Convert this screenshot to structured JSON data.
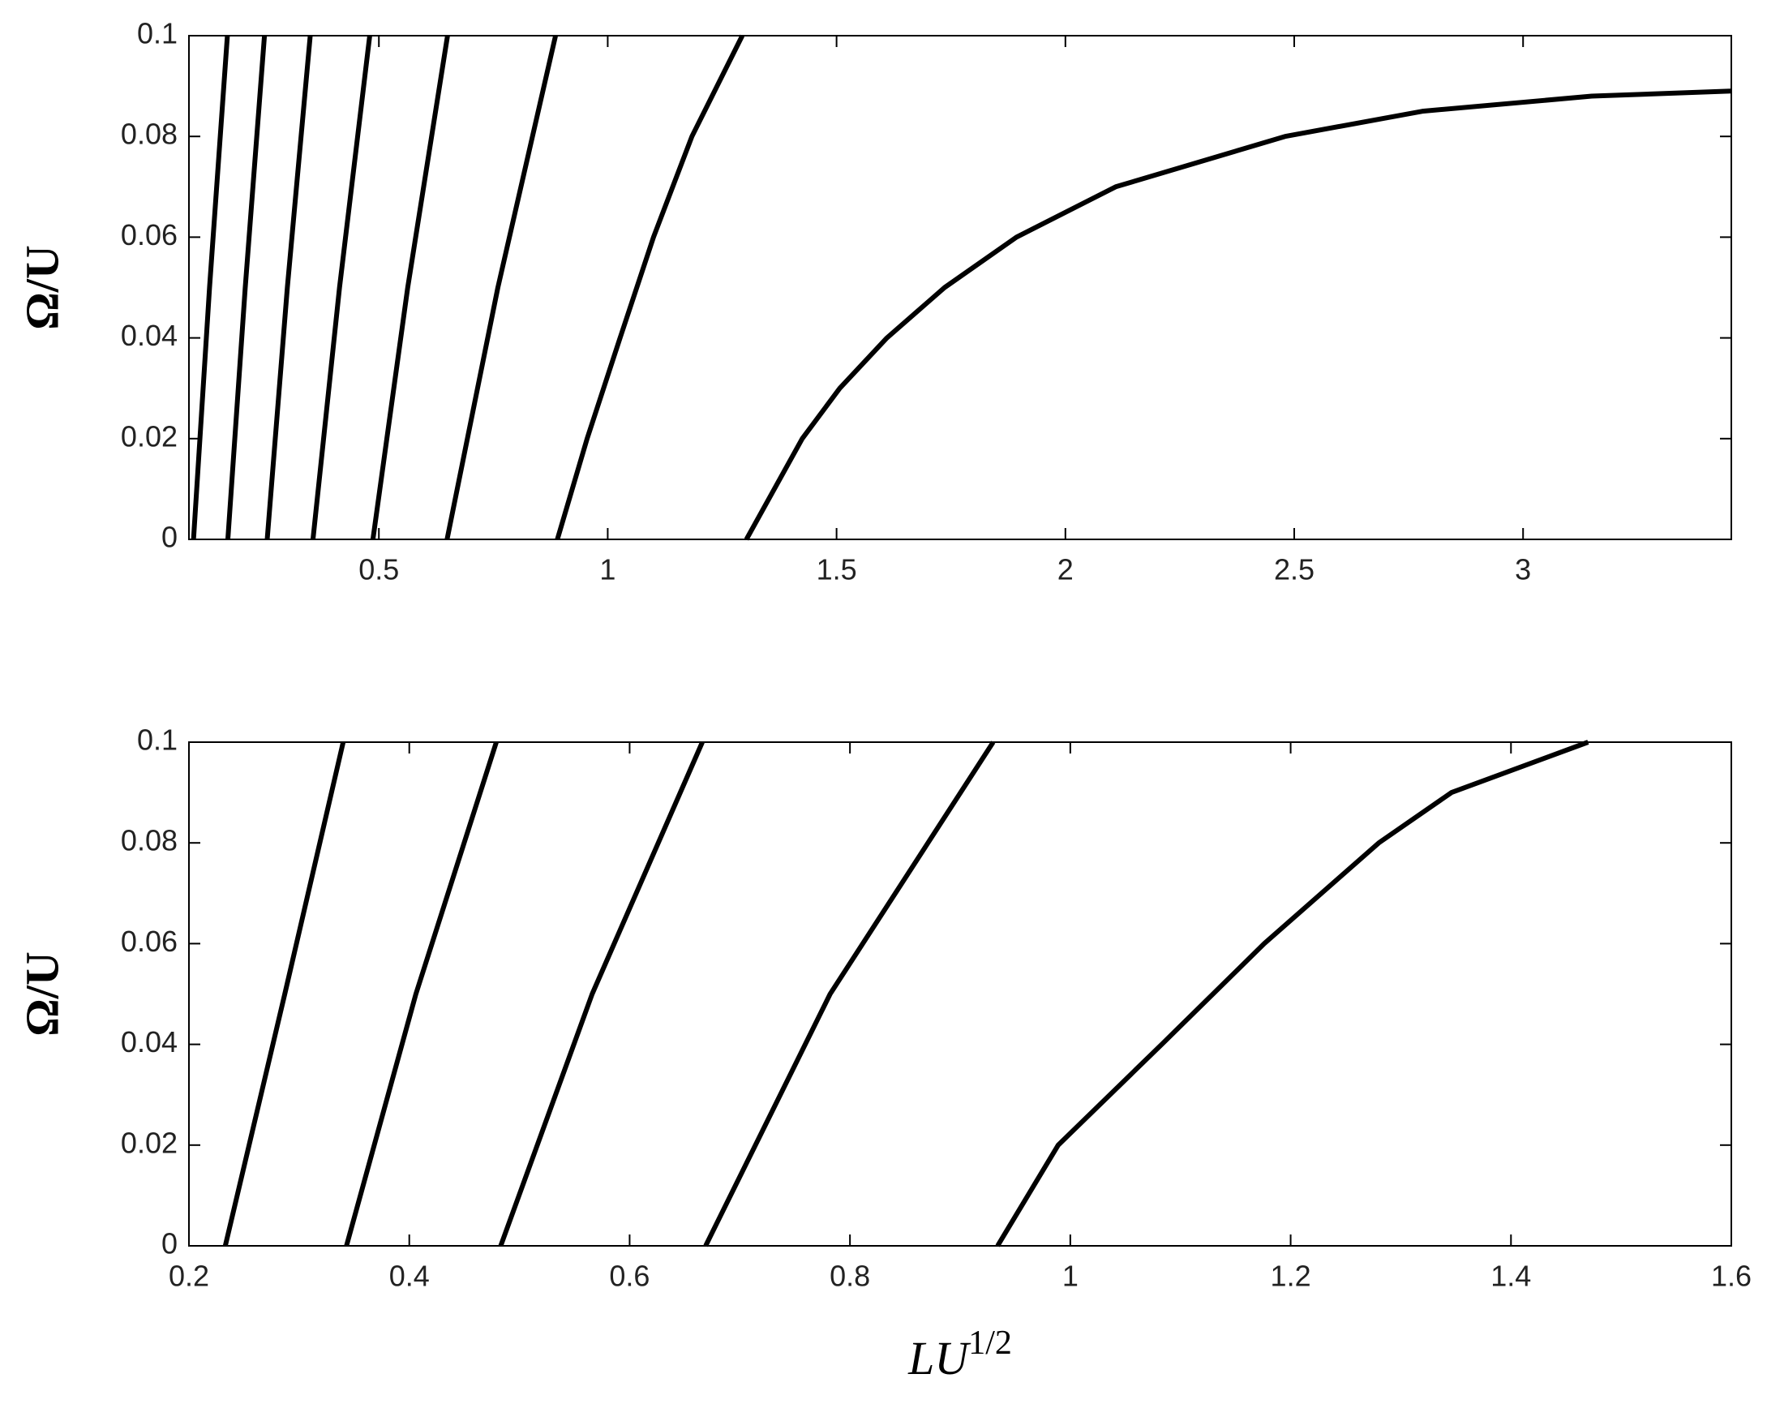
{
  "chart_data": [
    {
      "type": "line",
      "ylabel": "Ω/U",
      "xlim": [
        0.085,
        3.455
      ],
      "ylim": [
        0,
        0.1
      ],
      "xticks": [
        0.5,
        1,
        1.5,
        2,
        2.5,
        3
      ],
      "yticks": [
        0,
        0.02,
        0.04,
        0.06,
        0.08,
        0.1
      ],
      "series": [
        {
          "color": "#000000",
          "x": [
            0.095,
            0.13,
            0.169
          ],
          "values": [
            0,
            0.05,
            0.1
          ]
        },
        {
          "color": "#000000",
          "x": [
            0.17,
            0.208,
            0.25
          ],
          "values": [
            0,
            0.05,
            0.1
          ]
        },
        {
          "color": "#000000",
          "x": [
            0.256,
            0.3,
            0.35
          ],
          "values": [
            0,
            0.05,
            0.1
          ]
        },
        {
          "color": "#000000",
          "x": [
            0.356,
            0.414,
            0.48
          ],
          "values": [
            0,
            0.05,
            0.1
          ]
        },
        {
          "color": "#000000",
          "x": [
            0.487,
            0.563,
            0.65
          ],
          "values": [
            0,
            0.05,
            0.1
          ]
        },
        {
          "color": "#000000",
          "x": [
            0.649,
            0.76,
            0.886
          ],
          "values": [
            0,
            0.05,
            0.1
          ]
        },
        {
          "color": "#000000",
          "x": [
            0.89,
            0.955,
            1.027,
            1.1,
            1.184,
            1.294
          ],
          "values": [
            0,
            0.02,
            0.04,
            0.06,
            0.08,
            0.1
          ]
        },
        {
          "color": "#000000",
          "x": [
            1.303,
            1.425,
            1.507,
            1.61,
            1.736,
            1.893,
            2.11,
            2.48,
            2.78,
            3.15,
            3.455
          ],
          "values": [
            0,
            0.02,
            0.03,
            0.04,
            0.05,
            0.06,
            0.07,
            0.08,
            0.085,
            0.088,
            0.089
          ]
        }
      ]
    },
    {
      "type": "line",
      "ylabel": "Ω/U",
      "xlabel": "LU",
      "xlabel_superscript": "1/2",
      "xlim": [
        0.2,
        1.6
      ],
      "ylim": [
        0,
        0.1
      ],
      "xticks": [
        0.2,
        0.4,
        0.6,
        0.8,
        1,
        1.2,
        1.4,
        1.6
      ],
      "yticks": [
        0,
        0.02,
        0.04,
        0.06,
        0.08,
        0.1
      ],
      "series": [
        {
          "color": "#000000",
          "x": [
            0.233,
            0.287,
            0.34
          ],
          "values": [
            0,
            0.05,
            0.1
          ]
        },
        {
          "color": "#000000",
          "x": [
            0.343,
            0.406,
            0.479
          ],
          "values": [
            0,
            0.05,
            0.1
          ]
        },
        {
          "color": "#000000",
          "x": [
            0.483,
            0.566,
            0.666
          ],
          "values": [
            0,
            0.05,
            0.1
          ]
        },
        {
          "color": "#000000",
          "x": [
            0.669,
            0.782,
            0.93
          ],
          "values": [
            0,
            0.05,
            0.1
          ]
        },
        {
          "color": "#000000",
          "x": [
            0.934,
            0.989,
            1.083,
            1.176,
            1.28,
            1.346,
            1.47
          ],
          "values": [
            0,
            0.02,
            0.04,
            0.06,
            0.08,
            0.09,
            0.1
          ]
        }
      ]
    }
  ]
}
